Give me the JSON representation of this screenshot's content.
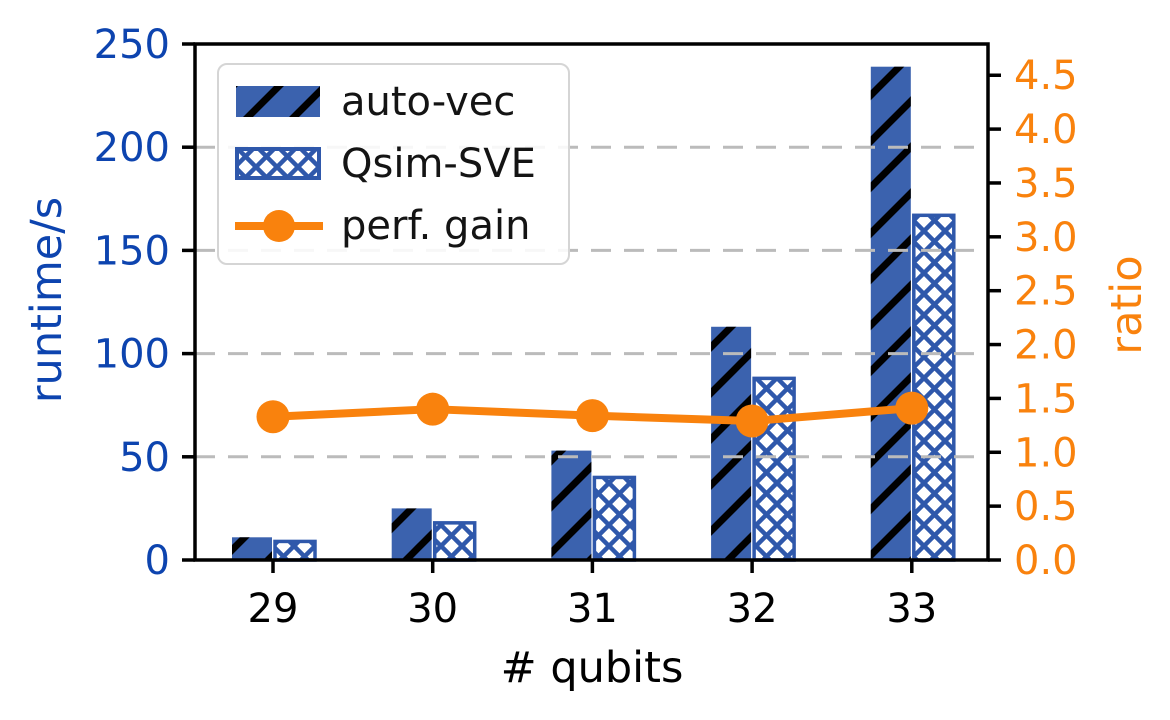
{
  "chart_data": {
    "type": "bar",
    "subtype": "grouped-bars-with-line-dual-axis",
    "categories": [
      "29",
      "30",
      "31",
      "32",
      "33"
    ],
    "series": [
      {
        "name": "auto-vec",
        "type": "bar",
        "axis": "left",
        "values": [
          11,
          25,
          53,
          113,
          239
        ]
      },
      {
        "name": "Qsim-SVE",
        "type": "bar",
        "axis": "left",
        "values": [
          9,
          18,
          40,
          88,
          167
        ]
      },
      {
        "name": "perf. gain",
        "type": "line",
        "axis": "right",
        "values": [
          1.33,
          1.4,
          1.34,
          1.29,
          1.41
        ]
      }
    ],
    "xlabel": "# qubits",
    "ylabel_left": "runtime/s",
    "ylabel_right": "ratio",
    "ylim_left": [
      0,
      250
    ],
    "yticks_left": [
      0,
      50,
      100,
      150,
      200,
      250
    ],
    "ylim_right": [
      0,
      4.79
    ],
    "yticks_right": [
      0.0,
      0.5,
      1.0,
      1.5,
      2.0,
      2.5,
      3.0,
      3.5,
      4.0,
      4.5
    ],
    "grid": {
      "horizontal": true,
      "style": "dashed",
      "at_left_ticks": [
        50,
        100,
        150,
        200,
        250
      ]
    },
    "legend_position": "upper-left",
    "colors": {
      "bar_fill_blue": "#3B62AE",
      "bar_hatch_black": "#000000",
      "qsim_hatch_blue": "#2F58AB",
      "left_axis_text": "#0D44AF",
      "right_axis_text": "#F9820D",
      "line_orange": "#F9820D",
      "x_axis_text": "#000000",
      "gridline_gray": "#BBBBBB",
      "spine_black": "#000000"
    }
  },
  "legend": {
    "items": [
      {
        "label": "auto-vec"
      },
      {
        "label": "Qsim-SVE"
      },
      {
        "label": "perf. gain"
      }
    ]
  }
}
